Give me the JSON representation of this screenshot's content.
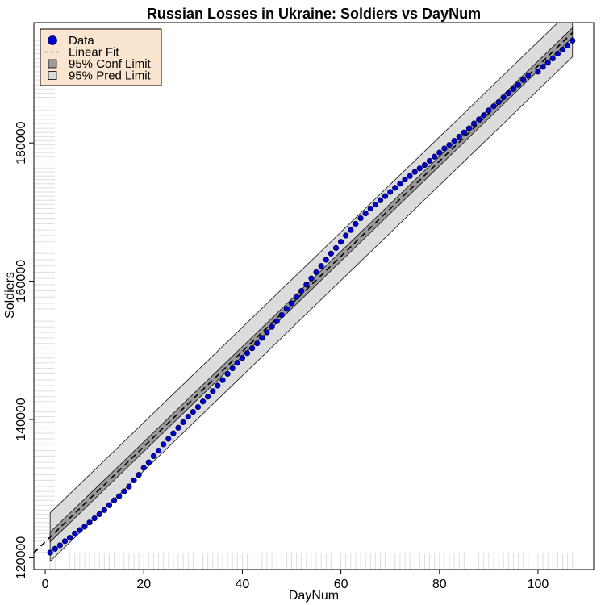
{
  "chart_data": {
    "type": "scatter",
    "title": "Russian Losses in Ukraine: Soldiers vs DayNum",
    "xlabel": "DayNum",
    "ylabel": "Soldiers",
    "xlim": [
      -2.3,
      111.3
    ],
    "ylim": [
      118300,
      197400
    ],
    "x_ticks": [
      0,
      20,
      40,
      60,
      80,
      100
    ],
    "y_ticks": [
      120000,
      140000,
      160000,
      180000
    ],
    "legend_position": "top-left",
    "legend": [
      {
        "label": "Data",
        "symbol": "point"
      },
      {
        "label": "Linear Fit",
        "symbol": "dashed-line"
      },
      {
        "label": "95% Conf Limit",
        "symbol": "dark-box"
      },
      {
        "label": "95% Pred Limit",
        "symbol": "light-box"
      }
    ],
    "colors": {
      "point_fill": "#0000cc",
      "point_stroke": "#00005a",
      "fit_line": "#333333",
      "conf_band": "#9a9a9a",
      "pred_band": "#dcdcdc",
      "legend_bg": "#fae6d0",
      "rug": "#dddddd"
    },
    "fit": {
      "intercept": 122300,
      "slope": 688.3
    },
    "conf_halfwidth": 700,
    "pred_halfwidth": 3500,
    "fit_x_range": [
      -2.3,
      107
    ],
    "band_x_range": [
      1,
      107
    ],
    "series": [
      {
        "name": "Data",
        "x": [
          1,
          2,
          3,
          4,
          5,
          6,
          7,
          8,
          9,
          10,
          11,
          12,
          13,
          14,
          15,
          16,
          17,
          18,
          19,
          20,
          21,
          22,
          23,
          24,
          25,
          26,
          27,
          28,
          29,
          30,
          31,
          32,
          33,
          34,
          35,
          36,
          37,
          38,
          39,
          40,
          41,
          42,
          43,
          44,
          45,
          46,
          47,
          48,
          49,
          50,
          51,
          52,
          53,
          54,
          55,
          56,
          57,
          58,
          59,
          60,
          61,
          62,
          63,
          64,
          65,
          66,
          67,
          68,
          69,
          70,
          71,
          72,
          73,
          74,
          75,
          76,
          77,
          78,
          79,
          80,
          81,
          82,
          83,
          84,
          85,
          86,
          87,
          88,
          89,
          90,
          91,
          92,
          93,
          94,
          95,
          96,
          97,
          98,
          100,
          101,
          102,
          103,
          104,
          105,
          106,
          107
        ],
        "y": [
          120760,
          121300,
          121800,
          122400,
          122900,
          123500,
          124000,
          124500,
          125100,
          125700,
          126300,
          126900,
          127600,
          128300,
          128900,
          129600,
          130300,
          131200,
          132000,
          133000,
          133800,
          134700,
          135500,
          136400,
          137200,
          138000,
          138800,
          139600,
          140400,
          141100,
          141800,
          142600,
          143300,
          144100,
          144900,
          145700,
          146600,
          147400,
          148200,
          148900,
          149600,
          150300,
          151000,
          151800,
          152600,
          153400,
          154200,
          155100,
          156000,
          156800,
          157700,
          158600,
          159500,
          160400,
          161300,
          162200,
          163100,
          164000,
          164800,
          165700,
          166600,
          167400,
          168300,
          169100,
          169800,
          170500,
          171100,
          171700,
          172300,
          172900,
          173500,
          174100,
          174700,
          175200,
          175800,
          176300,
          176800,
          177400,
          178000,
          178600,
          179200,
          179700,
          180300,
          180900,
          181500,
          182100,
          182800,
          183400,
          184000,
          184700,
          185300,
          185900,
          186600,
          187200,
          187800,
          188400,
          189100,
          189700,
          190300,
          191000,
          191600,
          192200,
          192900,
          193500,
          194100,
          194800
        ]
      }
    ]
  }
}
